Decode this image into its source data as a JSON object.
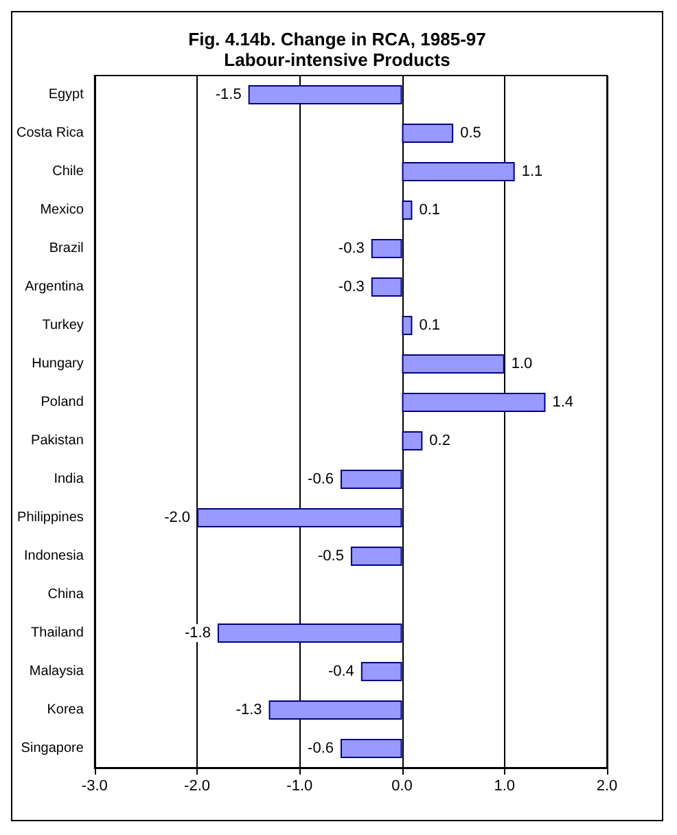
{
  "chart_data": {
    "type": "bar",
    "orientation": "horizontal",
    "title": "Fig. 4.14b. Change in RCA, 1985-97",
    "subtitle": "Labour-intensive Products",
    "categories": [
      "Egypt",
      "Costa Rica",
      "Chile",
      "Mexico",
      "Brazil",
      "Argentina",
      "Turkey",
      "Hungary",
      "Poland",
      "Pakistan",
      "India",
      "Philippines",
      "Indonesia",
      "China",
      "Thailand",
      "Malaysia",
      "Korea",
      "Singapore"
    ],
    "values": [
      -1.5,
      0.5,
      1.1,
      0.1,
      -0.3,
      -0.3,
      0.1,
      1.0,
      1.4,
      0.2,
      -0.6,
      -2.0,
      -0.5,
      null,
      -1.8,
      -0.4,
      -1.3,
      -0.6
    ],
    "value_labels": [
      "-1.5",
      "0.5",
      "1.1",
      "0.1",
      "-0.3",
      "-0.3",
      "0.1",
      "1.0",
      "1.4",
      "0.2",
      "-0.6",
      "-2.0",
      "-0.5",
      null,
      "-1.8",
      "-0.4",
      "-1.3",
      "-0.6"
    ],
    "color": "#9999ff",
    "xlim": [
      -3,
      2
    ],
    "xticks": [
      {
        "value": -3,
        "label": "-3.0"
      },
      {
        "value": -2,
        "label": "-2.0"
      },
      {
        "value": -1,
        "label": "-1.0"
      },
      {
        "value": 0,
        "label": "0.0"
      },
      {
        "value": 1,
        "label": "1.0"
      },
      {
        "value": 2,
        "label": "2.0"
      }
    ],
    "grid": "x"
  }
}
